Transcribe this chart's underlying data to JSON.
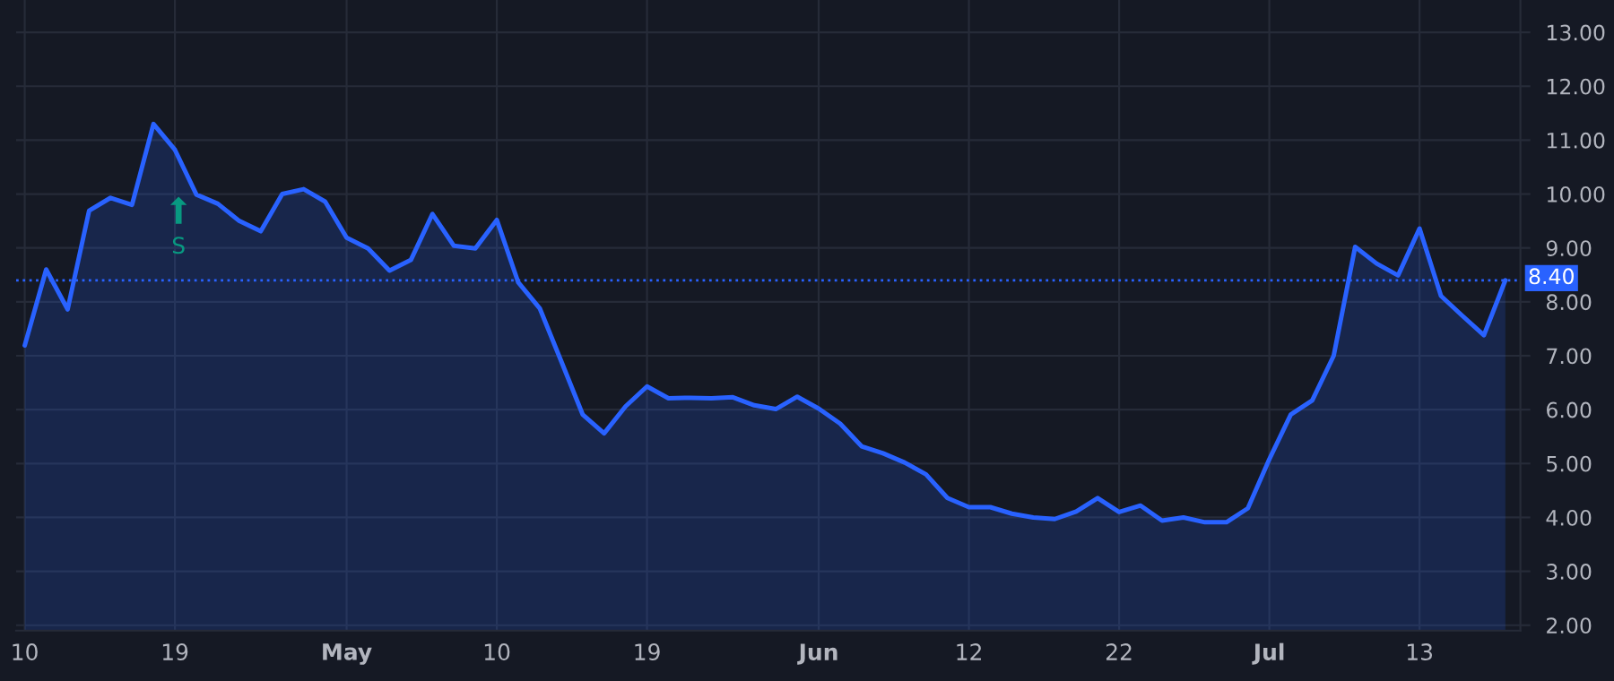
{
  "chart_data": {
    "type": "area",
    "categories": [
      "10",
      null,
      null,
      null,
      null,
      null,
      null,
      "19",
      null,
      null,
      null,
      null,
      null,
      null,
      null,
      "May",
      null,
      null,
      null,
      null,
      null,
      null,
      "10",
      null,
      null,
      null,
      null,
      null,
      null,
      "19",
      null,
      null,
      null,
      null,
      null,
      null,
      null,
      "Jun",
      null,
      null,
      null,
      null,
      null,
      null,
      "12",
      null,
      null,
      null,
      null,
      null,
      null,
      "22",
      null,
      null,
      null,
      null,
      null,
      null,
      "Jul",
      null,
      null,
      null,
      null,
      null,
      null,
      "13",
      null,
      null,
      null,
      null
    ],
    "series": [
      {
        "color": "#2962ff",
        "values": [
          7.19,
          8.6,
          7.86,
          9.69,
          9.93,
          9.8,
          11.3,
          10.82,
          9.99,
          9.82,
          9.5,
          9.31,
          10.0,
          10.09,
          9.86,
          9.19,
          8.99,
          8.58,
          8.78,
          9.63,
          9.04,
          8.99,
          9.52,
          8.36,
          7.88,
          6.9,
          5.91,
          5.56,
          6.06,
          6.43,
          6.21,
          6.22,
          6.21,
          6.23,
          6.08,
          6.01,
          6.24,
          6.02,
          5.74,
          5.32,
          5.19,
          5.02,
          4.8,
          4.36,
          4.19,
          4.19,
          4.07,
          4.0,
          3.97,
          4.11,
          4.36,
          4.1,
          4.22,
          3.94,
          4.0,
          3.91,
          3.91,
          4.17,
          5.08,
          5.91,
          6.17,
          7.0,
          9.02,
          8.71,
          8.49,
          9.36,
          8.11,
          7.74,
          7.38,
          8.4
        ]
      }
    ],
    "ylim": [
      1.9,
      13.6
    ],
    "yticks": [
      {
        "value": 2,
        "label": "2.00"
      },
      {
        "value": 3,
        "label": "3.00"
      },
      {
        "value": 4,
        "label": "4.00"
      },
      {
        "value": 5,
        "label": "5.00"
      },
      {
        "value": 6,
        "label": "6.00"
      },
      {
        "value": 7,
        "label": "7.00"
      },
      {
        "value": 8,
        "label": "8.00"
      },
      {
        "value": 9,
        "label": "9.00"
      },
      {
        "value": 10,
        "label": "10.00"
      },
      {
        "value": 11,
        "label": "11.00"
      },
      {
        "value": 12,
        "label": "12.00"
      },
      {
        "value": 13,
        "label": "13.00"
      }
    ],
    "ref_lines": [
      {
        "axis": "y",
        "value": 8.4,
        "label": "8.40",
        "color": "#2962ff",
        "line_style": "dotted"
      }
    ],
    "annotations": [
      "S"
    ],
    "grid": true
  }
}
